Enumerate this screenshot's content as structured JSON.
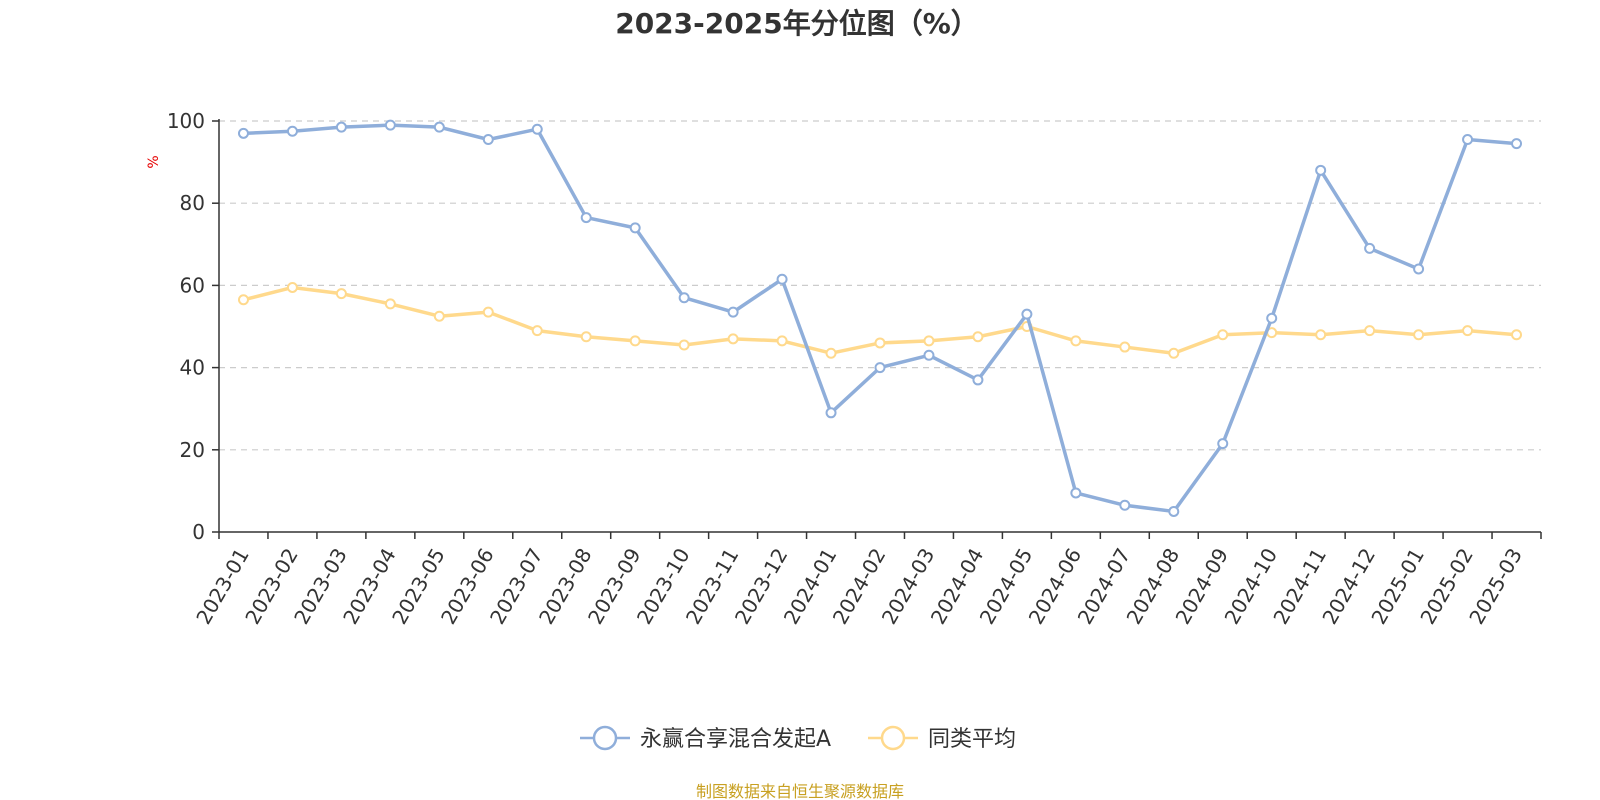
{
  "chart_data": {
    "type": "line",
    "title": "2023-2025年分位图（%）",
    "xlabel": "",
    "ylabel": "%",
    "ylim": [
      0,
      100
    ],
    "yticks": [
      0,
      20,
      40,
      60,
      80,
      100
    ],
    "grid": true,
    "legend_position": "bottom",
    "categories": [
      "2023-01",
      "2023-02",
      "2023-03",
      "2023-04",
      "2023-05",
      "2023-06",
      "2023-07",
      "2023-08",
      "2023-09",
      "2023-10",
      "2023-11",
      "2023-12",
      "2024-01",
      "2024-02",
      "2024-03",
      "2024-04",
      "2024-05",
      "2024-06",
      "2024-07",
      "2024-08",
      "2024-09",
      "2024-10",
      "2024-11",
      "2024-12",
      "2025-01",
      "2025-02",
      "2025-03"
    ],
    "series": [
      {
        "name": "永赢合享混合发起A",
        "color": "#8FAEDA",
        "values": [
          97,
          97.5,
          98.5,
          99,
          98.5,
          95.5,
          98,
          76.5,
          74,
          57,
          53.5,
          61.5,
          29,
          40,
          43,
          37,
          53,
          9.5,
          6.5,
          5,
          21.5,
          52,
          88,
          69,
          64,
          95.5,
          94.5
        ]
      },
      {
        "name": "同类平均",
        "color": "#FFD98C",
        "values": [
          56.5,
          59.5,
          58,
          55.5,
          52.5,
          53.5,
          49,
          47.5,
          46.5,
          45.5,
          47,
          46.5,
          43.5,
          46,
          46.5,
          47.5,
          50,
          46.5,
          45,
          43.5,
          48,
          48.5,
          48,
          49,
          48,
          49,
          48
        ]
      }
    ]
  },
  "source": "制图数据来自恒生聚源数据库",
  "colors": {
    "axis": "#333333",
    "grid": "#CCCCCC",
    "ylabel": "#E60000",
    "source": "#C8A021"
  }
}
